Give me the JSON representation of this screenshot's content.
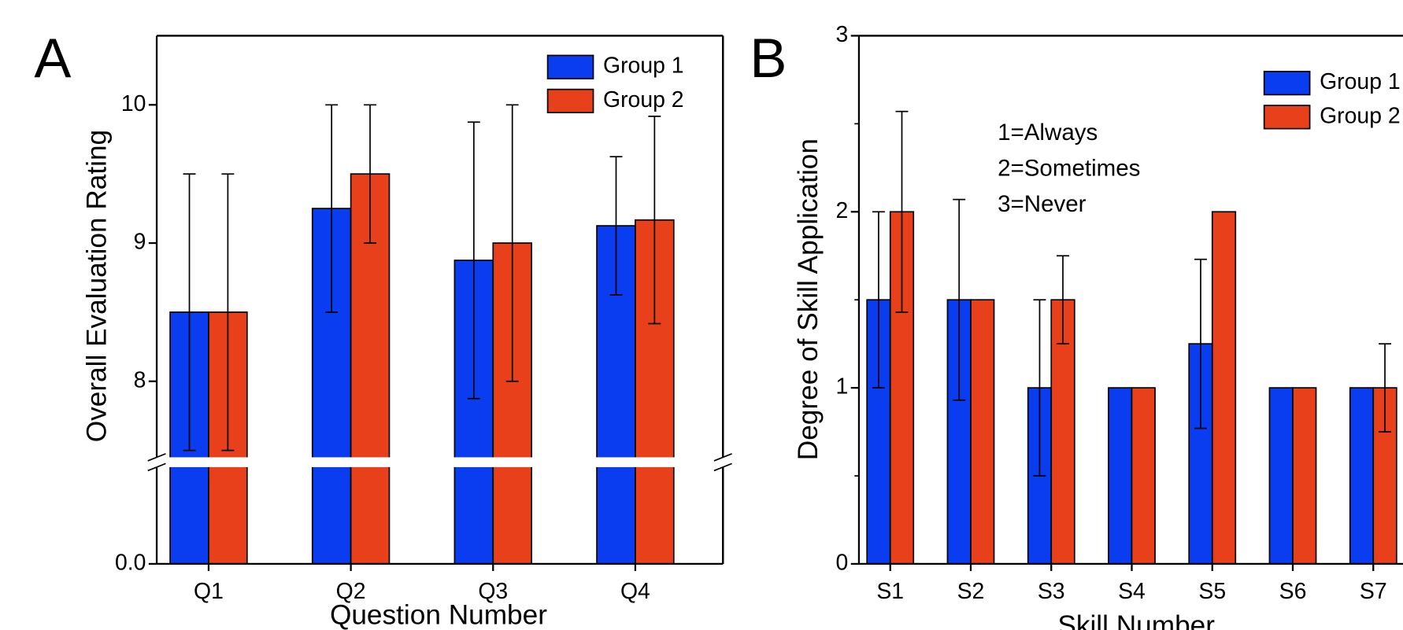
{
  "chart_data": [
    {
      "type": "bar",
      "title": "A",
      "xlabel": "Question Number",
      "ylabel": "Overall Evaluation Rating",
      "categories": [
        "Q1",
        "Q2",
        "Q3",
        "Q4"
      ],
      "series": [
        {
          "name": "Group 1",
          "color": "#0a3cf0",
          "values": [
            8.5,
            9.25,
            8.875,
            9.125
          ],
          "errors": [
            1.0,
            0.75,
            1.0,
            0.5
          ]
        },
        {
          "name": "Group 2",
          "color": "#e8401a",
          "values": [
            8.5,
            9.5,
            9.0,
            9.167
          ],
          "errors": [
            1.0,
            0.5,
            1.0,
            0.75
          ]
        }
      ],
      "ylim": [
        0,
        10.5
      ],
      "ybreak": [
        0.7,
        7.45
      ],
      "yticks": [
        {
          "value": 0,
          "label": "0.0"
        },
        8,
        9,
        10
      ],
      "legend": "upper right"
    },
    {
      "type": "bar",
      "title": "B",
      "xlabel": "Skill Number",
      "ylabel": "Degree of Skill Application",
      "categories": [
        "S1",
        "S2",
        "S3",
        "S4",
        "S5",
        "S6",
        "S7"
      ],
      "series": [
        {
          "name": "Group 1",
          "color": "#0a3cf0",
          "values": [
            1.5,
            1.5,
            1.0,
            1.0,
            1.25,
            1.0,
            1.0
          ],
          "errors": [
            0.5,
            0.57,
            0.5,
            null,
            0.48,
            null,
            null
          ]
        },
        {
          "name": "Group 2",
          "color": "#e8401a",
          "values": [
            2.0,
            1.5,
            1.5,
            1.0,
            2.0,
            1.0,
            1.0
          ],
          "errors": [
            0.57,
            null,
            0.25,
            null,
            null,
            null,
            0.25
          ]
        }
      ],
      "annotations": [
        "1=Always",
        "2=Sometimes",
        "3=Never"
      ],
      "ylim": [
        0,
        3
      ],
      "yticks": [
        0,
        1,
        2,
        3
      ],
      "legend": "upper right"
    }
  ]
}
